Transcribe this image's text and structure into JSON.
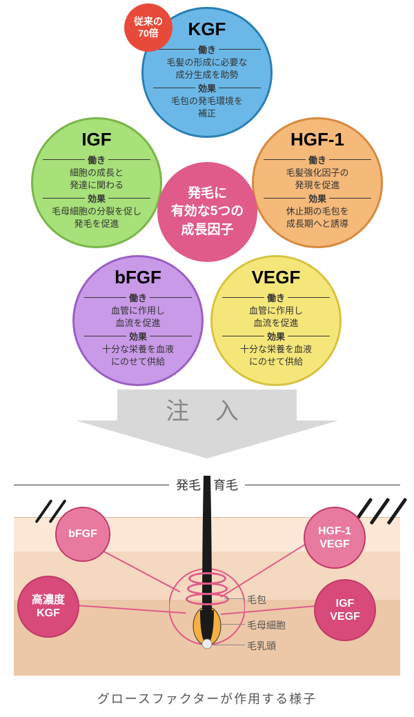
{
  "colors": {
    "kgf_fill": "#6bb8e8",
    "kgf_stroke": "#2a7fb5",
    "igf_fill": "#a8e07a",
    "igf_stroke": "#7ab54a",
    "hgf_fill": "#f5b97a",
    "hgf_stroke": "#d68a3f",
    "bfgf_fill": "#c99ae8",
    "bfgf_stroke": "#9a5fc4",
    "vegf_fill": "#f5e67a",
    "vegf_stroke": "#d6c43f",
    "center_fill": "#e05a8a",
    "badge_fill": "#e84a3a",
    "arrow_fill": "#d8d8d8",
    "skin_top": "#fde8d8",
    "skin_mid": "#f5d8c0",
    "skin_bot": "#ecc8a8",
    "gf_dark": "#d84a7a",
    "gf_light": "#e87aa0",
    "gf_stroke": "#c03a68",
    "ring": "#e05a8a",
    "connector": "#e05a8a",
    "hair": "#1a1a1a"
  },
  "center": {
    "text": "発毛に\n有効な5つの\n成長因子"
  },
  "badge": {
    "text": "従来の\n70倍"
  },
  "factors": {
    "kgf": {
      "title": "KGF",
      "func_label": "働き",
      "func": "毛髪の形成に必要な\n成分生成を助勢",
      "eff_label": "効果",
      "eff": "毛包の発毛環境を\n補正"
    },
    "igf": {
      "title": "IGF",
      "func_label": "働き",
      "func": "細胞の成長と\n発達に関わる",
      "eff_label": "効果",
      "eff": "毛母細胞の分裂を促し\n発毛を促進"
    },
    "hgf": {
      "title": "HGF-1",
      "func_label": "働き",
      "func": "毛髪強化因子の\n発現を促進",
      "eff_label": "効果",
      "eff": "休止期の毛包を\n成長期へと誘導"
    },
    "bfgf": {
      "title": "bFGF",
      "func_label": "働き",
      "func": "血管に作用し\n血流を促進",
      "eff_label": "効果",
      "eff": "十分な栄養を血液\nにのせて供給"
    },
    "vegf": {
      "title": "VEGF",
      "func_label": "働き",
      "func": "血管に作用し\n血流を促進",
      "eff_label": "効果",
      "eff": "十分な栄養を血液\nにのせて供給"
    }
  },
  "arrow_label": "注 入",
  "section2_title": "発毛・育毛",
  "gf_nodes": {
    "bfgf": "bFGF",
    "kgf": "高濃度\nKGF",
    "hgf": "HGF-1\nVEGF",
    "igf": "IGF\nVEGF"
  },
  "anatomy": {
    "a1": "毛包",
    "a2": "毛母細胞",
    "a3": "毛乳頭"
  },
  "caption": "グロースファクターが作用する様子"
}
